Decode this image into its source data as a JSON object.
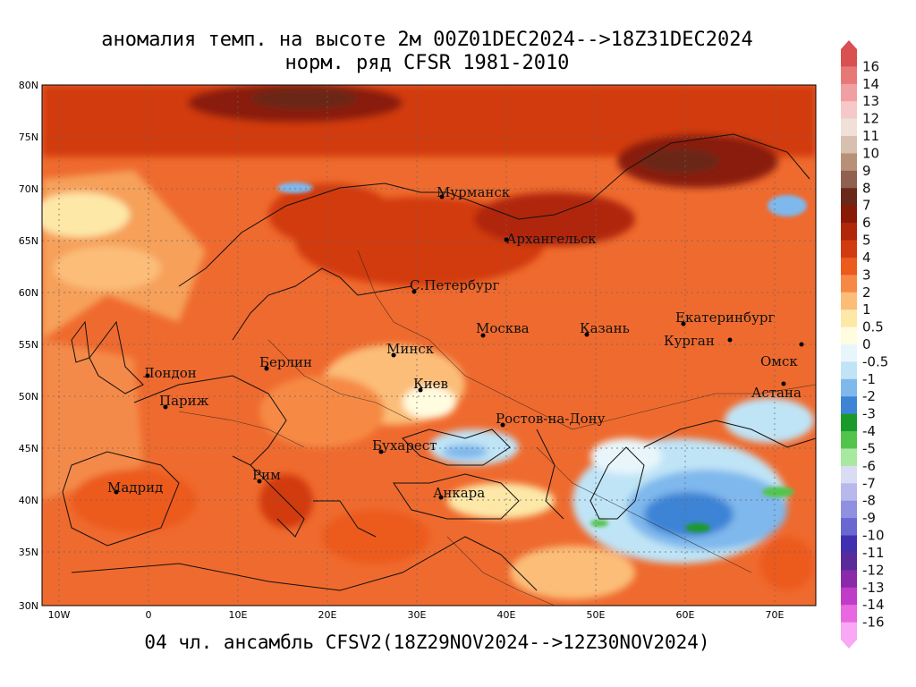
{
  "title_line1": "аномалия темп. на высоте 2м 00Z01DEC2024-->18Z31DEC2024",
  "title_line2": "норм. ряд CFSR 1981-2010",
  "bottom_caption": "04 чл. ансамбль CFSV2(18Z29NOV2024-->12Z30NOV2024)",
  "lat_labels": [
    "80N",
    "75N",
    "70N",
    "65N",
    "60N",
    "55N",
    "50N",
    "45N",
    "40N",
    "35N",
    "30N"
  ],
  "lon_labels": [
    "10W",
    "0",
    "10E",
    "20E",
    "30E",
    "40E",
    "50E",
    "60E",
    "70E"
  ],
  "cities": [
    {
      "name": "Мурманск"
    },
    {
      "name": "Архангельск"
    },
    {
      "name": "С.Петербург"
    },
    {
      "name": "Москва"
    },
    {
      "name": "Казань"
    },
    {
      "name": "Екатеринбург"
    },
    {
      "name": "Курган"
    },
    {
      "name": "Омск"
    },
    {
      "name": "Астана"
    },
    {
      "name": "Минск"
    },
    {
      "name": "Берлин"
    },
    {
      "name": "Лондон"
    },
    {
      "name": "Париж"
    },
    {
      "name": "Киев"
    },
    {
      "name": "Ростов-на-Дону"
    },
    {
      "name": "Бухарест"
    },
    {
      "name": "Рим"
    },
    {
      "name": "Мадрид"
    },
    {
      "name": "Анкара"
    }
  ],
  "colorbar": {
    "labels": [
      "16",
      "14",
      "13",
      "12",
      "11",
      "10",
      "9",
      "8",
      "7",
      "6",
      "5",
      "4",
      "3",
      "2",
      "1",
      "0.5",
      "0",
      "-0.5",
      "-1",
      "-2",
      "-3",
      "-4",
      "-5",
      "-6",
      "-7",
      "-8",
      "-9",
      "-10",
      "-11",
      "-12",
      "-13",
      "-14",
      "-16"
    ],
    "colors": [
      "#d85050",
      "#e87878",
      "#f0a0a0",
      "#f7c8c8",
      "#f0e0d8",
      "#d8c0b0",
      "#b89078",
      "#906050",
      "#6a2818",
      "#8a1a08",
      "#b02808",
      "#d23a10",
      "#ec5a1c",
      "#f68a45",
      "#fbbd78",
      "#fde8a8",
      "#fffce0",
      "#e8f6fb",
      "#bfe4f6",
      "#7fb8ec",
      "#3e84d6",
      "#1a9a2a",
      "#52c44c",
      "#a8e8a0",
      "#dadcf4",
      "#b8b8ec",
      "#9090e0",
      "#6868d0",
      "#4030b0",
      "#5a2a9a",
      "#8a2aa8",
      "#c03cc8",
      "#e868e0",
      "#f8a8f4"
    ]
  }
}
